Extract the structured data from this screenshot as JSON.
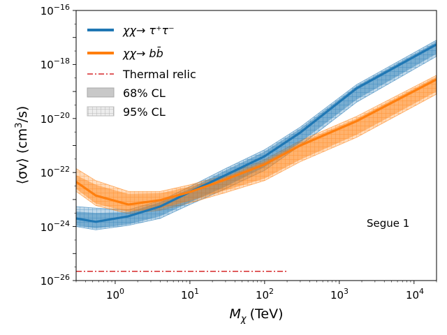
{
  "chart_data": {
    "type": "line",
    "x_scale": "log",
    "y_scale": "log",
    "xlabel_main": "M",
    "xlabel_sub": "χ",
    "xlabel_unit": "(TeV)",
    "ylabel_pre": "⟨σv⟩ (cm",
    "ylabel_sup": "3",
    "ylabel_post": "/s)",
    "xlim": [
      0.3,
      20000
    ],
    "ylim": [
      1e-26,
      1e-16
    ],
    "x_ticks": [
      {
        "base": "10",
        "exp": "0",
        "value": 1
      },
      {
        "base": "10",
        "exp": "1",
        "value": 10
      },
      {
        "base": "10",
        "exp": "2",
        "value": 100
      },
      {
        "base": "10",
        "exp": "3",
        "value": 1000
      },
      {
        "base": "10",
        "exp": "4",
        "value": 10000
      }
    ],
    "y_ticks": [
      {
        "base": "10",
        "exp": "−26",
        "value": 1e-26
      },
      {
        "base": "10",
        "exp": "−24",
        "value": 1e-24
      },
      {
        "base": "10",
        "exp": "−22",
        "value": 1e-22
      },
      {
        "base": "10",
        "exp": "−20",
        "value": 1e-20
      },
      {
        "base": "10",
        "exp": "−18",
        "value": 1e-18
      },
      {
        "base": "10",
        "exp": "−16",
        "value": 1e-16
      }
    ],
    "annotation": "Segue 1",
    "series": [
      {
        "name": "tau",
        "legend_label": "χχ→ τ⁺τ⁻",
        "color": "#1f77b4",
        "x": [
          0.3,
          0.55,
          1.5,
          4,
          10,
          30,
          100,
          300,
          1700,
          20000
        ],
        "y": [
          2e-24,
          1.5e-24,
          2.4e-24,
          5.5e-24,
          1.9e-23,
          8e-23,
          4e-22,
          3e-21,
          1.3e-19,
          5.5e-18
        ],
        "band68": {
          "lower": [
            1.1e-24,
            8.5e-25,
            1.2e-24,
            2.4e-24,
            8e-24,
            3e-23,
            1.6e-22,
            1.3e-21,
            5e-20,
            2.5e-18
          ],
          "upper": [
            3.6e-24,
            3.2e-24,
            3.4e-24,
            8e-24,
            2.5e-23,
            1.2e-22,
            6e-22,
            4.2e-21,
            1.6e-19,
            7e-18
          ]
        },
        "band95": {
          "lower": [
            1e-24,
            7.5e-25,
            1.1e-24,
            2e-24,
            6.5e-24,
            2.5e-23,
            1.2e-22,
            1e-21,
            4e-20,
            2e-18
          ],
          "upper": [
            5.5e-24,
            4.8e-24,
            4.2e-24,
            9e-24,
            3e-23,
            1.4e-22,
            7e-22,
            4.8e-21,
            1.8e-19,
            8e-18
          ]
        }
      },
      {
        "name": "b",
        "legend_label": "χχ→ bb̄",
        "color": "#ff7f0e",
        "x": [
          0.3,
          0.55,
          1.5,
          4,
          10,
          30,
          100,
          300,
          1700,
          20000
        ],
        "y": [
          4.5e-23,
          1.4e-23,
          6.5e-24,
          9.5e-24,
          1.9e-23,
          5.5e-23,
          2e-22,
          1e-21,
          8e-21,
          2.8e-19
        ],
        "band68": {
          "lower": [
            2.5e-23,
            7e-24,
            3.5e-24,
            4.5e-24,
            9e-24,
            2.2e-23,
            6e-23,
            3e-22,
            2.5e-21,
            1e-19
          ],
          "upper": [
            8e-23,
            3.5e-23,
            1.6e-23,
            1.7e-23,
            3e-23,
            7e-23,
            2.6e-22,
            1.3e-21,
            1e-20,
            3.5e-19
          ]
        },
        "band95": {
          "lower": [
            2e-23,
            6e-24,
            3e-24,
            4e-24,
            7.5e-24,
            1.8e-23,
            5e-23,
            2.5e-22,
            2e-21,
            8e-20
          ],
          "upper": [
            1.4e-22,
            5e-23,
            2e-23,
            2e-23,
            3.5e-23,
            8e-23,
            3e-22,
            1.5e-21,
            1.2e-20,
            4e-19
          ]
        }
      }
    ],
    "thermal_relic": {
      "label": "Thermal relic",
      "color": "#d62728",
      "value": 2.2e-26,
      "x_range": [
        0.3,
        200
      ]
    },
    "legend": {
      "position": "top-left",
      "cl68_label": "68% CL",
      "cl95_label": "95% CL"
    }
  }
}
